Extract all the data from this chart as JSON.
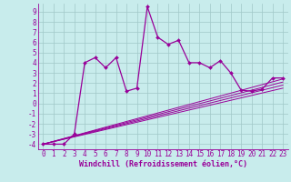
{
  "xlabel": "Windchill (Refroidissement éolien,°C)",
  "bg_color": "#c8ecec",
  "grid_color": "#a0c8c8",
  "line_color": "#990099",
  "x_main": [
    0,
    1,
    2,
    3,
    4,
    5,
    6,
    7,
    8,
    9,
    10,
    11,
    12,
    13,
    14,
    15,
    16,
    17,
    18,
    19,
    20,
    21,
    22,
    23
  ],
  "y_main": [
    -4,
    -4,
    -4,
    -3,
    4,
    4.5,
    3.5,
    4.5,
    1.2,
    1.5,
    9.5,
    6.5,
    5.8,
    6.2,
    4.0,
    4.0,
    3.5,
    4.2,
    3.0,
    1.3,
    1.2,
    1.4,
    2.5,
    2.5
  ],
  "diag_lines": [
    {
      "x": [
        0,
        23
      ],
      "y": [
        -4,
        2.4
      ]
    },
    {
      "x": [
        0,
        23
      ],
      "y": [
        -4,
        2.1
      ]
    },
    {
      "x": [
        0,
        23
      ],
      "y": [
        -4,
        1.8
      ]
    },
    {
      "x": [
        0,
        23
      ],
      "y": [
        -4,
        1.5
      ]
    }
  ],
  "xlim": [
    -0.5,
    23.5
  ],
  "ylim": [
    -4.5,
    9.8
  ],
  "yticks": [
    -4,
    -3,
    -2,
    -1,
    0,
    1,
    2,
    3,
    4,
    5,
    6,
    7,
    8,
    9
  ],
  "xticks": [
    0,
    1,
    2,
    3,
    4,
    5,
    6,
    7,
    8,
    9,
    10,
    11,
    12,
    13,
    14,
    15,
    16,
    17,
    18,
    19,
    20,
    21,
    22,
    23
  ],
  "font_size_ticks": 5.5,
  "font_size_xlabel": 6.0
}
